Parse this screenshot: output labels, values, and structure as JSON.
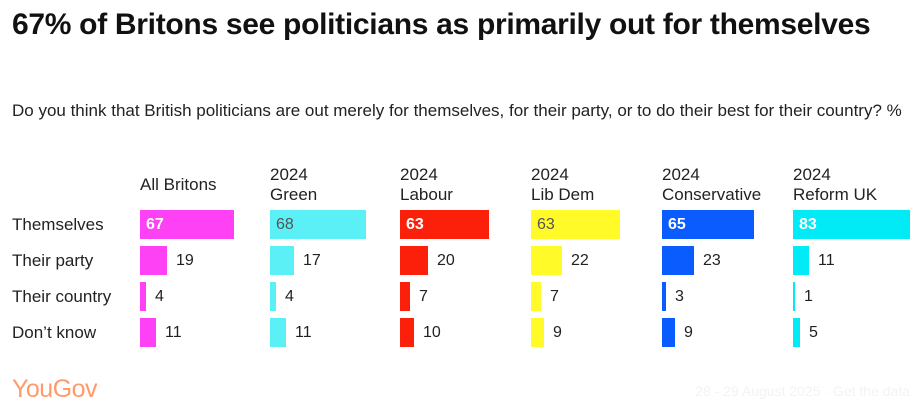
{
  "header": {
    "title": "67% of Britons see politicians as primarily out for themselves",
    "subtitle": "Do you think that British politicians are out merely for themselves, for their party, or to do their best for their country? %"
  },
  "chart_data": {
    "type": "bar",
    "categories": [
      "Themselves",
      "Their party",
      "Their country",
      "Don’t know"
    ],
    "series": [
      {
        "name": "All Britons",
        "color": "#ff41f5",
        "values": [
          67,
          19,
          4,
          11
        ]
      },
      {
        "name": "2024\nGreen",
        "color": "#5af0f5",
        "values": [
          68,
          17,
          4,
          11
        ]
      },
      {
        "name": "2024\nLabour",
        "color": "#fc1f09",
        "values": [
          63,
          20,
          7,
          10
        ]
      },
      {
        "name": "2024\nLib Dem",
        "color": "#fffa28",
        "values": [
          63,
          22,
          7,
          9
        ]
      },
      {
        "name": "2024\nConservative",
        "color": "#0a5cff",
        "values": [
          65,
          23,
          3,
          9
        ]
      },
      {
        "name": "2024\nReform UK",
        "color": "#00ebf5",
        "values": [
          83,
          11,
          1,
          5
        ]
      }
    ],
    "xlim": [
      0,
      100
    ],
    "grid": false,
    "legend": "none"
  },
  "branding": {
    "logo": "YouGov",
    "footer": "28 - 29 August 2025 · Get the data"
  }
}
